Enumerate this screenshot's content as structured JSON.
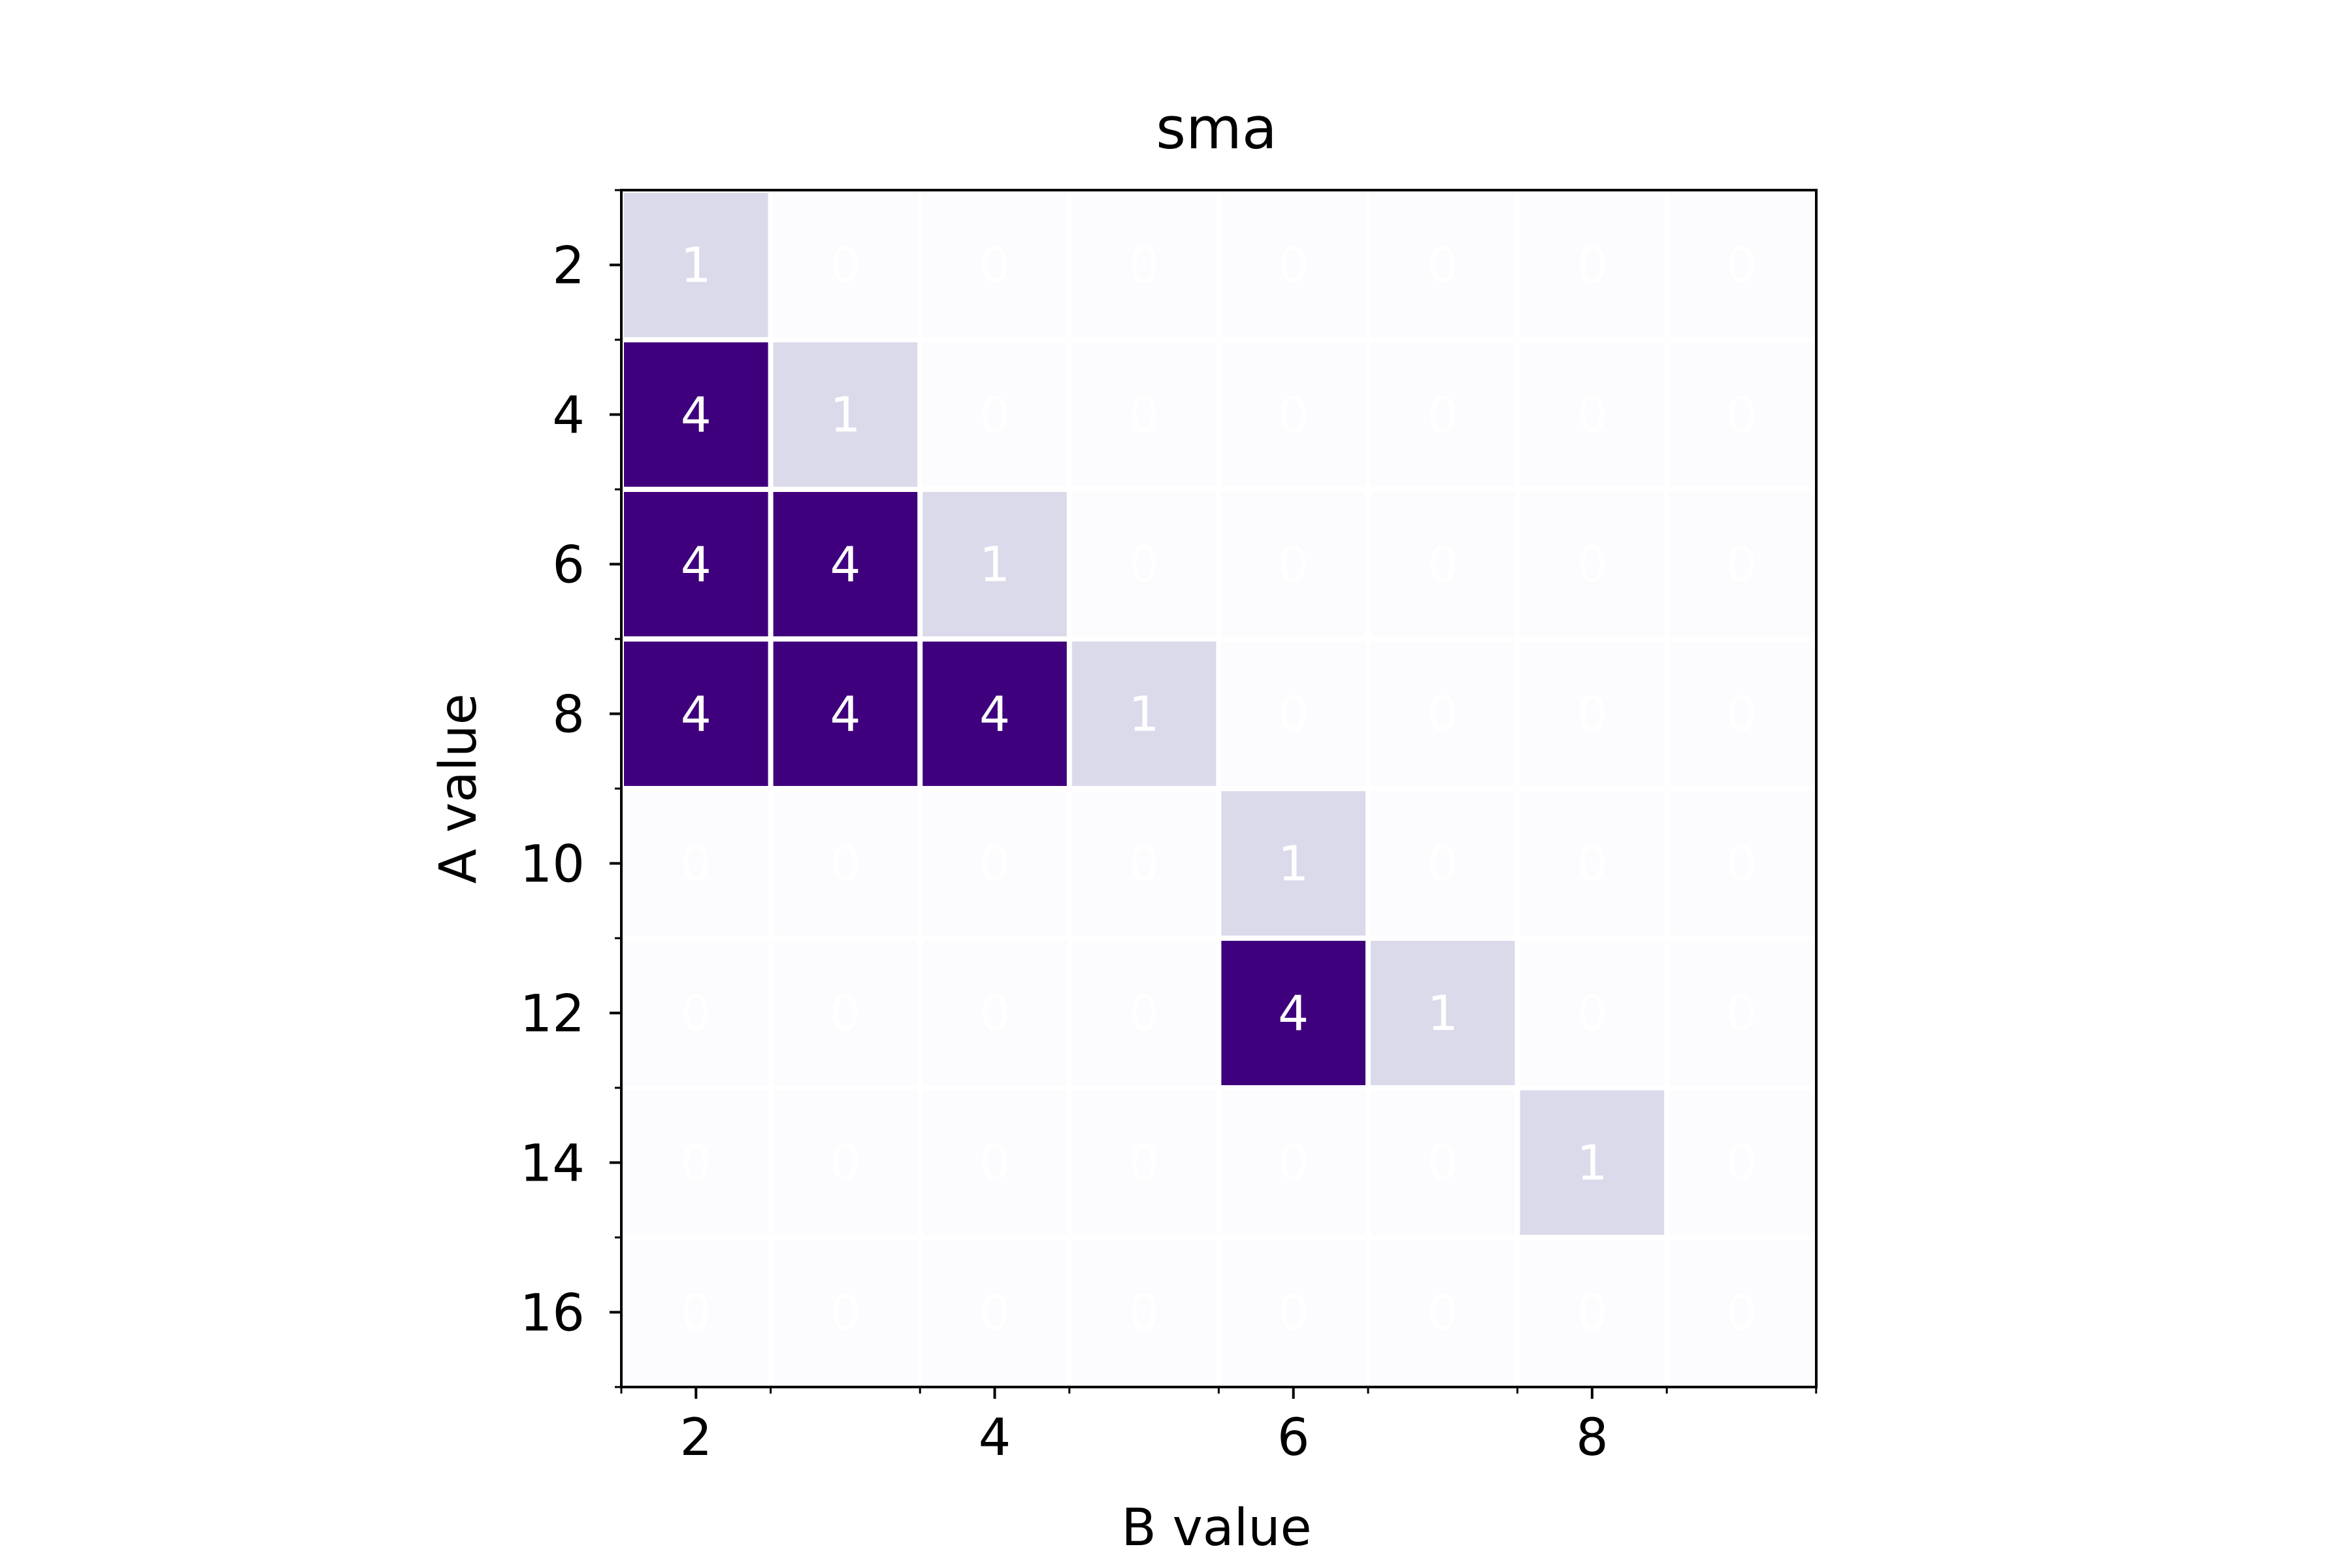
{
  "chart_data": {
    "type": "heatmap",
    "title": "sma",
    "xlabel": "B value",
    "ylabel": "A value",
    "x": [
      2,
      3,
      4,
      5,
      6,
      7,
      8,
      9
    ],
    "y": [
      2,
      4,
      6,
      8,
      10,
      12,
      14,
      16
    ],
    "xticks": [
      "2",
      "4",
      "6",
      "8"
    ],
    "yticks": [
      "2",
      "4",
      "6",
      "8",
      "10",
      "12",
      "14",
      "16"
    ],
    "values": [
      [
        1,
        0,
        0,
        0,
        0,
        0,
        0,
        0
      ],
      [
        4,
        1,
        0,
        0,
        0,
        0,
        0,
        0
      ],
      [
        4,
        4,
        1,
        0,
        0,
        0,
        0,
        0
      ],
      [
        4,
        4,
        4,
        1,
        0,
        0,
        0,
        0
      ],
      [
        0,
        0,
        0,
        0,
        1,
        0,
        0,
        0
      ],
      [
        0,
        0,
        0,
        0,
        4,
        1,
        0,
        0
      ],
      [
        0,
        0,
        0,
        0,
        0,
        0,
        1,
        0
      ],
      [
        0,
        0,
        0,
        0,
        0,
        0,
        0,
        0
      ]
    ],
    "colors": {
      "0": "#fcfbfd",
      "1": "#dadaeb",
      "4": "#3f007d"
    },
    "cell_text_color": "#ffffff",
    "grid": false
  }
}
